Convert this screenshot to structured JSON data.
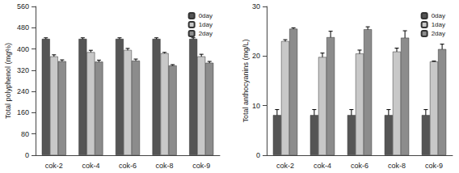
{
  "chart_data": [
    {
      "type": "bar",
      "y_label": "Total polyphenol (mg%)",
      "categories": [
        "cok-2",
        "cok-4",
        "cok-6",
        "cok-8",
        "cok-9"
      ],
      "series": [
        {
          "name": "0day",
          "color": "#555555",
          "values": [
            438,
            438,
            438,
            438,
            438
          ],
          "errors": [
            4,
            4,
            4,
            4,
            4
          ]
        },
        {
          "name": "1day",
          "color": "#c8c8c8",
          "values": [
            372,
            388,
            396,
            384,
            372
          ],
          "errors": [
            6,
            7,
            6,
            3,
            8
          ]
        },
        {
          "name": "2day",
          "color": "#8c8c8c",
          "values": [
            354,
            352,
            356,
            338,
            348
          ],
          "errors": [
            5,
            6,
            6,
            3,
            5
          ]
        }
      ],
      "ylim": [
        0,
        560
      ],
      "yticks": [
        0,
        80,
        160,
        240,
        320,
        400,
        480,
        560
      ],
      "legend": "upper right"
    },
    {
      "type": "bar",
      "y_label": "Total anthocyanins (mg/L)",
      "categories": [
        "cok-2",
        "cok-4",
        "cok-6",
        "cok-8",
        "cok-9"
      ],
      "series": [
        {
          "name": "0day",
          "color": "#555555",
          "values": [
            8.1,
            8.1,
            8.1,
            8.1,
            8.1
          ],
          "errors": [
            1.1,
            1.1,
            1.1,
            1.1,
            1.1
          ]
        },
        {
          "name": "1day",
          "color": "#c8c8c8",
          "values": [
            23.0,
            19.8,
            20.5,
            20.9,
            18.9
          ],
          "errors": [
            0.3,
            0.8,
            0.7,
            0.7,
            0.1
          ]
        },
        {
          "name": "2day",
          "color": "#8c8c8c",
          "values": [
            25.5,
            23.8,
            25.4,
            23.7,
            21.4
          ],
          "errors": [
            0.2,
            1.2,
            0.5,
            1.4,
            1.0
          ]
        }
      ],
      "ylim": [
        0,
        30
      ],
      "yticks": [
        0,
        10,
        20,
        30
      ],
      "legend": "upper right"
    }
  ]
}
